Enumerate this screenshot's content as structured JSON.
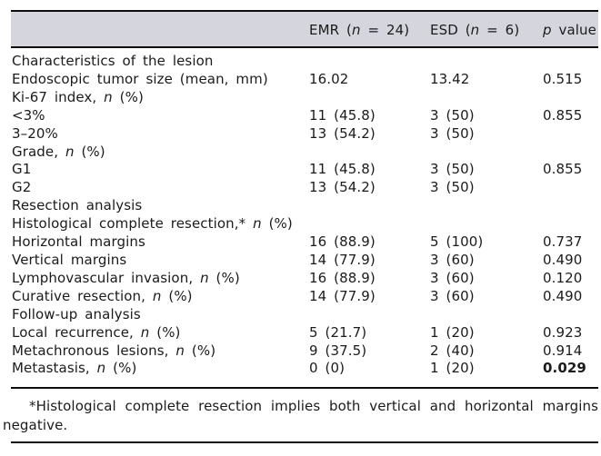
{
  "header": {
    "columns": [
      {
        "pre": "EMR (",
        "italic": "n",
        "post": " = 24)"
      },
      {
        "pre": "ESD (",
        "italic": "n",
        "post": " = 6)"
      },
      {
        "pre": "",
        "italic": "p",
        "post": " value"
      }
    ]
  },
  "table": {
    "rows": [
      {
        "label_pre": "Characteristics of the lesion",
        "label_n": "",
        "label_post": "",
        "emr": "",
        "esd": "",
        "p": ""
      },
      {
        "label_pre": "Endoscopic tumor size (mean, mm)",
        "label_n": "",
        "label_post": "",
        "emr": "16.02",
        "esd": "13.42",
        "p": "0.515"
      },
      {
        "label_pre": "Ki-67 index, ",
        "label_n": "n",
        "label_post": " (%)",
        "emr": "",
        "esd": "",
        "p": ""
      },
      {
        "label_pre": "<3%",
        "label_n": "",
        "label_post": "",
        "emr": "11 (45.8)",
        "esd": "3 (50)",
        "p": "0.855"
      },
      {
        "label_pre": "3–20%",
        "label_n": "",
        "label_post": "",
        "emr": "13 (54.2)",
        "esd": "3 (50)",
        "p": ""
      },
      {
        "label_pre": "Grade, ",
        "label_n": "n",
        "label_post": " (%)",
        "emr": "",
        "esd": "",
        "p": ""
      },
      {
        "label_pre": "G1",
        "label_n": "",
        "label_post": "",
        "emr": "11 (45.8)",
        "esd": "3 (50)",
        "p": "0.855"
      },
      {
        "label_pre": "G2",
        "label_n": "",
        "label_post": "",
        "emr": "13 (54.2)",
        "esd": "3 (50)",
        "p": ""
      },
      {
        "label_pre": "Resection analysis",
        "label_n": "",
        "label_post": "",
        "emr": "",
        "esd": "",
        "p": ""
      },
      {
        "label_pre": "Histological complete resection,* ",
        "label_n": "n",
        "label_post": " (%)",
        "emr": "",
        "esd": "",
        "p": ""
      },
      {
        "label_pre": "Horizontal margins",
        "label_n": "",
        "label_post": "",
        "emr": "16 (88.9)",
        "esd": "5 (100)",
        "p": "0.737"
      },
      {
        "label_pre": "Vertical margins",
        "label_n": "",
        "label_post": "",
        "emr": "14 (77.9)",
        "esd": "3 (60)",
        "p": "0.490"
      },
      {
        "label_pre": "Lymphovascular invasion, ",
        "label_n": "n",
        "label_post": " (%)",
        "emr": "16 (88.9)",
        "esd": "3 (60)",
        "p": "0.120"
      },
      {
        "label_pre": "Curative resection, ",
        "label_n": "n",
        "label_post": " (%)",
        "emr": "14 (77.9)",
        "esd": "3 (60)",
        "p": "0.490"
      },
      {
        "label_pre": "Follow-up analysis",
        "label_n": "",
        "label_post": "",
        "emr": "",
        "esd": "",
        "p": ""
      },
      {
        "label_pre": "Local recurrence, ",
        "label_n": "n",
        "label_post": " (%)",
        "emr": "5 (21.7)",
        "esd": "1 (20)",
        "p": "0.923"
      },
      {
        "label_pre": "Metachronous lesions, ",
        "label_n": "n",
        "label_post": " (%)",
        "emr": "9 (37.5)",
        "esd": "2 (40)",
        "p": "0.914"
      },
      {
        "label_pre": "Metastasis, ",
        "label_n": "n",
        "label_post": " (%)",
        "emr": "0 (0)",
        "esd": "1 (20)",
        "p": "0.029"
      }
    ]
  },
  "footnote": {
    "line1": "*Histological complete resection implies both vertical and horizontal margins",
    "line2": "negative."
  },
  "colors": {
    "header_bg": "#d5d5de",
    "rule": "#0d0d0d",
    "text": "#1b1b1b"
  }
}
